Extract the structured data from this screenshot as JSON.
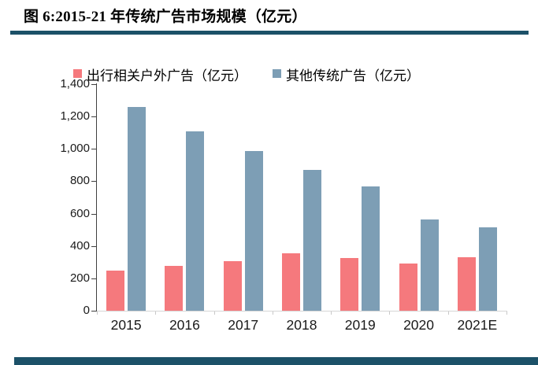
{
  "figure": {
    "title": "图 6:2015-21 年传统广告市场规模（亿元）"
  },
  "accent": {
    "rule_color": "#1C5168",
    "axis_line_color": "#404040",
    "baseline_color": "#D6D6D6"
  },
  "chart_data": {
    "type": "bar",
    "categories": [
      "2015",
      "2016",
      "2017",
      "2018",
      "2019",
      "2020",
      "2021E"
    ],
    "series": [
      {
        "key": "travel-outdoor-ad",
        "name": "出行相关户外广告（亿元）",
        "color": "#F5797D",
        "values": [
          250,
          275,
          305,
          355,
          325,
          290,
          330
        ]
      },
      {
        "key": "other-traditional-ad",
        "name": "其他传统广告（亿元）",
        "color": "#7D9EB5",
        "values": [
          1260,
          1110,
          985,
          870,
          770,
          565,
          515
        ]
      }
    ],
    "title": "图 6:2015-21 年传统广告市场规模（亿元）",
    "xlabel": "",
    "ylabel": "",
    "ylim": [
      0,
      1400
    ],
    "ytick_step": 200,
    "ytick_labels": [
      "0",
      "200",
      "400",
      "600",
      "800",
      "1,000",
      "1,200",
      "1,400"
    ],
    "grid": false,
    "legend_position": "top"
  }
}
